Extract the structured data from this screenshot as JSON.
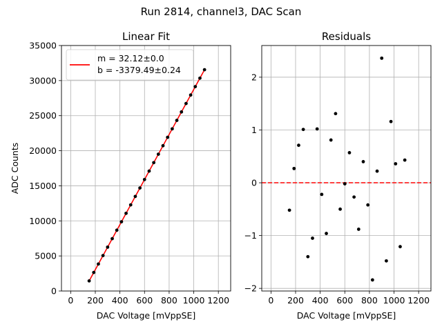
{
  "figure": {
    "suptitle": "Run 2814, channel3, DAC Scan"
  },
  "chart_data": [
    {
      "type": "scatter",
      "title": "Linear Fit",
      "xlabel": "DAC Voltage [mVppSE]",
      "ylabel": "ADC Counts",
      "xlim": [
        -75,
        1300
      ],
      "ylim": [
        0,
        35000
      ],
      "x_ticks": [
        0,
        200,
        400,
        600,
        800,
        1000,
        1200
      ],
      "y_ticks": [
        0,
        5000,
        10000,
        15000,
        20000,
        25000,
        30000,
        35000
      ],
      "grid": true,
      "legend_position": "upper left",
      "x": [
        150,
        187.5,
        225,
        262.5,
        300,
        337.5,
        375,
        412.5,
        450,
        487.5,
        525,
        562.5,
        600,
        637.5,
        675,
        712.5,
        750,
        787.5,
        825,
        862.5,
        900,
        937.5,
        975,
        1012.5,
        1050,
        1087.5
      ],
      "series": [
        {
          "name": "data",
          "marker": "dot",
          "color": "#000000",
          "values": [
            1439,
            2644,
            3848,
            5053,
            6256,
            7462,
            8668,
            9871,
            11075,
            12280,
            13485,
            14688,
            15893,
            17098,
            18302,
            19506,
            20712,
            21915,
            23119,
            24325,
            25530,
            26732,
            27938,
            29141,
            30344,
            31550
          ]
        },
        {
          "name": "fit",
          "type": "line",
          "color": "#ff0000",
          "slope": 32.12,
          "intercept": -3379.49
        }
      ],
      "legend": {
        "lines": [
          "m = 32.12±0.0",
          "b = -3379.49±0.24"
        ]
      }
    },
    {
      "type": "scatter",
      "title": "Residuals",
      "xlabel": "DAC Voltage [mVppSE]",
      "ylabel": "",
      "xlim": [
        -75,
        1300
      ],
      "ylim": [
        -2.05,
        2.6
      ],
      "x_ticks": [
        0,
        200,
        400,
        600,
        800,
        1000,
        1200
      ],
      "y_ticks": [
        -2,
        -1,
        0,
        1,
        2
      ],
      "y_tick_labels": [
        "−2",
        "−1",
        "0",
        "1",
        "2"
      ],
      "grid": true,
      "reference_line": {
        "y": 0,
        "style": "dashed",
        "color": "#ff0000"
      },
      "x": [
        150,
        187.5,
        225,
        262.5,
        300,
        337.5,
        375,
        412.5,
        450,
        487.5,
        525,
        562.5,
        600,
        637.5,
        675,
        712.5,
        750,
        787.5,
        825,
        862.5,
        900,
        937.5,
        975,
        1012.5,
        1050,
        1087.5
      ],
      "series": [
        {
          "name": "residuals",
          "marker": "dot",
          "color": "#000000",
          "values": [
            -0.52,
            0.27,
            0.71,
            1.01,
            -1.4,
            -1.05,
            1.02,
            -0.22,
            -0.96,
            0.81,
            1.31,
            -0.5,
            -0.02,
            0.57,
            -0.27,
            -0.88,
            0.4,
            -0.42,
            -1.84,
            0.22,
            2.36,
            -1.48,
            1.16,
            0.36,
            -1.21,
            0.43
          ]
        }
      ]
    }
  ]
}
